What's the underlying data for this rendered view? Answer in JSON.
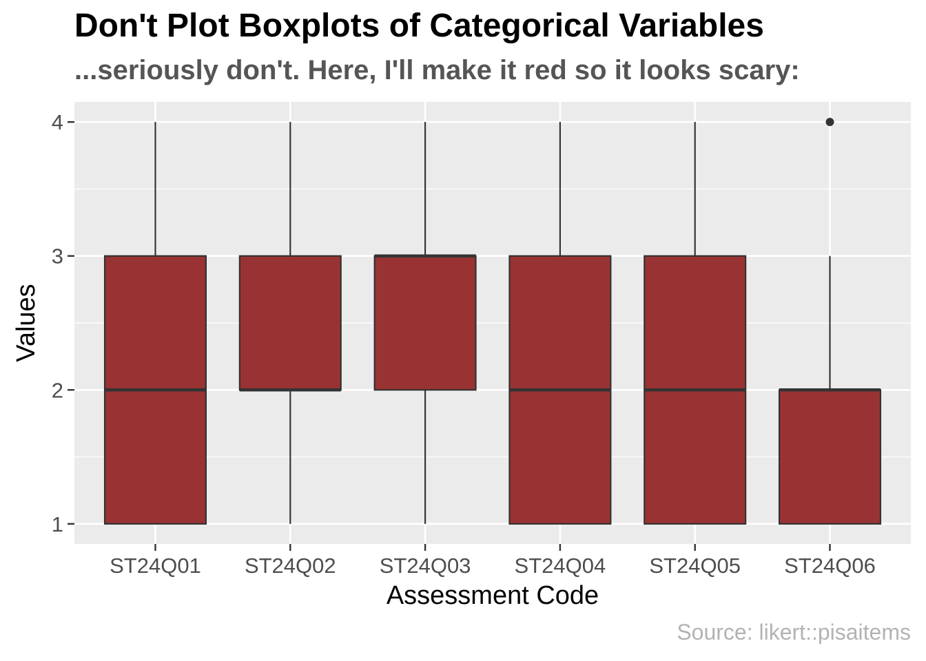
{
  "chart_data": {
    "type": "boxplot",
    "title": "Don't Plot Boxplots of Categorical Variables",
    "subtitle": "...seriously don't. Here, I'll make it red so it looks scary:",
    "caption": "Source: likert::pisaitems",
    "xlabel": "Assessment Code",
    "ylabel": "Values",
    "ylim": [
      0.85,
      4.15
    ],
    "yticks": [
      1,
      2,
      3,
      4
    ],
    "grid": true,
    "fill_color": "#993333",
    "outline_color": "#333333",
    "panel_color": "#ebebeb",
    "categories": [
      "ST24Q01",
      "ST24Q02",
      "ST24Q03",
      "ST24Q04",
      "ST24Q05",
      "ST24Q06"
    ],
    "boxes": [
      {
        "category": "ST24Q01",
        "min": 1,
        "q1": 1,
        "median": 2,
        "q3": 3,
        "max": 4,
        "outliers": []
      },
      {
        "category": "ST24Q02",
        "min": 1,
        "q1": 2,
        "median": 2,
        "q3": 3,
        "max": 4,
        "outliers": []
      },
      {
        "category": "ST24Q03",
        "min": 1,
        "q1": 2,
        "median": 3,
        "q3": 3,
        "max": 4,
        "outliers": []
      },
      {
        "category": "ST24Q04",
        "min": 1,
        "q1": 1,
        "median": 2,
        "q3": 3,
        "max": 4,
        "outliers": []
      },
      {
        "category": "ST24Q05",
        "min": 1,
        "q1": 1,
        "median": 2,
        "q3": 3,
        "max": 4,
        "outliers": []
      },
      {
        "category": "ST24Q06",
        "min": 1,
        "q1": 1,
        "median": 2,
        "q3": 2,
        "max": 3,
        "outliers": [
          4
        ]
      }
    ]
  }
}
